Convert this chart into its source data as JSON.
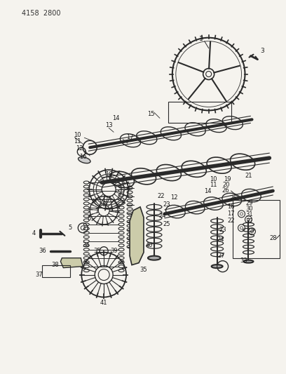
{
  "title": "4158  2800",
  "bg_color": "#f5f3ee",
  "line_color": "#2a2a2a",
  "text_color": "#1a1a1a",
  "fig_width": 4.08,
  "fig_height": 5.33,
  "dpi": 100
}
